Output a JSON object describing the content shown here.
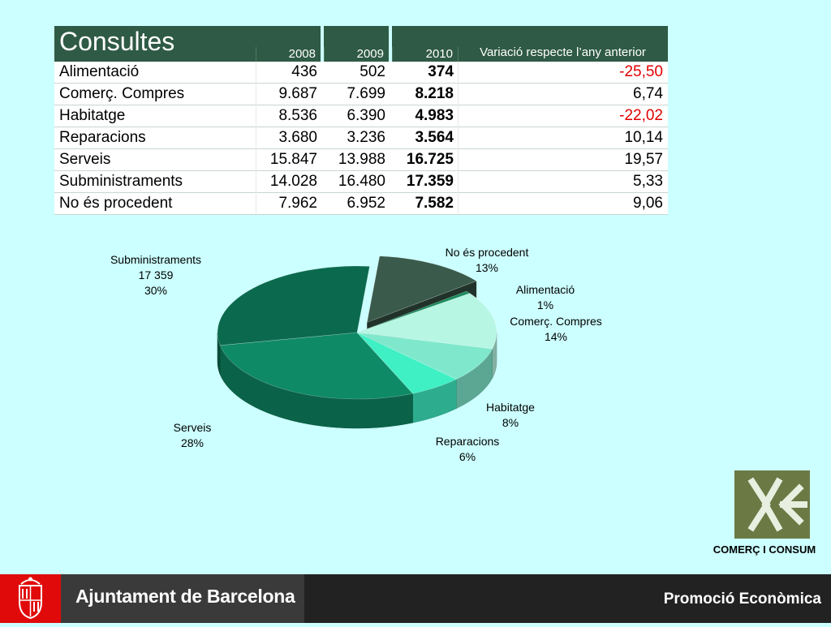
{
  "table": {
    "title": "Consultes",
    "years": [
      "2008",
      "2009",
      "2010"
    ],
    "variation_header": "Variació respecte l’any anterior",
    "rows": [
      {
        "name": "Alimentació",
        "y2008": "436",
        "y2009": "502",
        "y2010": "374",
        "variation": "-25,50",
        "negative": true
      },
      {
        "name": "Comerç. Compres",
        "y2008": "9.687",
        "y2009": "7.699",
        "y2010": "8.218",
        "variation": "6,74",
        "negative": false
      },
      {
        "name": "Habitatge",
        "y2008": "8.536",
        "y2009": "6.390",
        "y2010": "4.983",
        "variation": "-22,02",
        "negative": true
      },
      {
        "name": "Reparacions",
        "y2008": "3.680",
        "y2009": "3.236",
        "y2010": "3.564",
        "variation": "10,14",
        "negative": false
      },
      {
        "name": "Serveis",
        "y2008": "15.847",
        "y2009": "13.988",
        "y2010": "16.725",
        "variation": "19,57",
        "negative": false
      },
      {
        "name": "Subministraments",
        "y2008": "14.028",
        "y2009": "16.480",
        "y2010": "17.359",
        "variation": "5,33",
        "negative": false
      },
      {
        "name": "No és procedent",
        "y2008": "7.962",
        "y2009": "6.952",
        "y2010": "7.582",
        "variation": "9,06",
        "negative": false
      }
    ]
  },
  "chart_data": {
    "type": "pie",
    "slices": [
      {
        "name": "No és procedent",
        "value": 7582,
        "percent_label": "13%",
        "color": "#3a5a4c",
        "exploded": true
      },
      {
        "name": "Alimentació",
        "value": 374,
        "percent_label": "1%",
        "color": "#1a8a5c",
        "exploded": false
      },
      {
        "name": "Comerç. Compres",
        "value": 8218,
        "percent_label": "14%",
        "color": "#b8f6e4",
        "exploded": false
      },
      {
        "name": "Habitatge",
        "value": 4983,
        "percent_label": "8%",
        "color": "#7fe8cc",
        "exploded": false
      },
      {
        "name": "Reparacions",
        "value": 3564,
        "percent_label": "6%",
        "color": "#3ef0c4",
        "exploded": false
      },
      {
        "name": "Serveis",
        "value": 16725,
        "percent_label": "28%",
        "color": "#0e8a66",
        "exploded": false
      },
      {
        "name": "Subministraments",
        "value": 17359,
        "value_label": "17 359",
        "percent_label": "30%",
        "color": "#0b6a4e",
        "exploded": false
      }
    ]
  },
  "logo": {
    "caption": "COMERÇ I CONSUM",
    "icon": "comerc-consum-logo-icon"
  },
  "footer": {
    "brand": "Ajuntament de Barcelona",
    "department": "Promoció Econòmica",
    "crest_icon": "barcelona-crest-icon"
  },
  "colors": {
    "background": "#ccffff",
    "header": "#2f5a45",
    "negative": "#e00000",
    "footer": "#222222"
  }
}
